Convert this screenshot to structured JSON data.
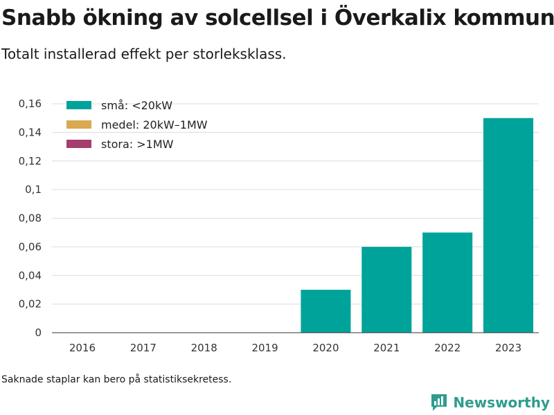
{
  "header": {
    "title": "Snabb ökning av solcellsel i Överkalix kommun",
    "subtitle": "Totalt installerad effekt per storleksklass."
  },
  "footer": {
    "note": "Saknade staplar kan bero på statistiksekretess.",
    "brand": "Newsworthy"
  },
  "colors": {
    "small": "#00a39a",
    "medium": "#d9a950",
    "large": "#a43e6b",
    "brand": "#2f9c8e"
  },
  "icons": {
    "brand_logo": "bar-chart-speech-bubble-icon"
  },
  "chart_data": {
    "type": "bar",
    "stacked": true,
    "categories": [
      "2016",
      "2017",
      "2018",
      "2019",
      "2020",
      "2021",
      "2022",
      "2023"
    ],
    "series": [
      {
        "name": "små: <20kW",
        "color": "#00a39a",
        "values": [
          0,
          0,
          0,
          0,
          0.03,
          0.06,
          0.07,
          0.15
        ]
      },
      {
        "name": "medel: 20kW–1MW",
        "color": "#d9a950",
        "values": [
          0,
          0,
          0,
          0,
          0,
          0,
          0,
          0
        ]
      },
      {
        "name": "stora: >1MW",
        "color": "#a43e6b",
        "values": [
          0,
          0,
          0,
          0,
          0,
          0,
          0,
          0
        ]
      }
    ],
    "ylim": [
      0,
      0.16
    ],
    "yticks": [
      "0",
      "0,02",
      "0,04",
      "0,06",
      "0,08",
      "0,1",
      "0,12",
      "0,14",
      "0,16"
    ],
    "grid": true,
    "legend": "top-left"
  }
}
